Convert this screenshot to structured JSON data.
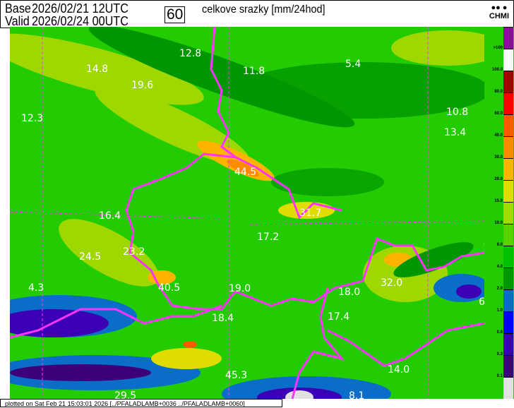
{
  "header": {
    "base_label": "Base",
    "base_time": "2026/02/21 12UTC",
    "valid_label": "Valid",
    "valid_time": "2026/02/24 00UTC",
    "forecast_hour": "60",
    "title": "celkove srazky [mm/24hod]",
    "logo": "CHMI"
  },
  "map": {
    "values": [
      "12.8",
      "11.8",
      "5.4",
      "14.8",
      "19.6",
      "12.3",
      "10.8",
      "13.4",
      "44.5",
      "31.7",
      "16.4",
      "17.2",
      "24.5",
      "23.2",
      "12.8",
      "32.0",
      "4.3",
      "40.5",
      "19.0",
      "18.0",
      "6",
      "17.4",
      "18.4",
      "14.0",
      "45.3",
      "29.5",
      "8.1"
    ],
    "border_color": "#ff33ff"
  },
  "legend": {
    "labels": [
      ">100",
      "100.0",
      "80.0",
      "60.0",
      "40.0",
      "30.0",
      "20.0",
      "15.0",
      "10.0",
      "6.0",
      "4.0",
      "2.0",
      "1.0",
      "0.6",
      "0.3",
      "0.1"
    ],
    "colors": [
      "#8c0a9c",
      "#ffffff",
      "#a00000",
      "#ff0000",
      "#ff5a00",
      "#ff8c00",
      "#ffb400",
      "#e0dc00",
      "#a0dc00",
      "#5ad200",
      "#00be00",
      "#009600",
      "#0a6ec8",
      "#0000ff",
      "#3c00b4",
      "#3c0078",
      "#e0e0e0"
    ]
  },
  "footer": {
    "text": "plotted on Sat Feb 21 15:03:01 2026 [../PFALADLAMB+0036 ../PFALADLAMB+0060]"
  }
}
